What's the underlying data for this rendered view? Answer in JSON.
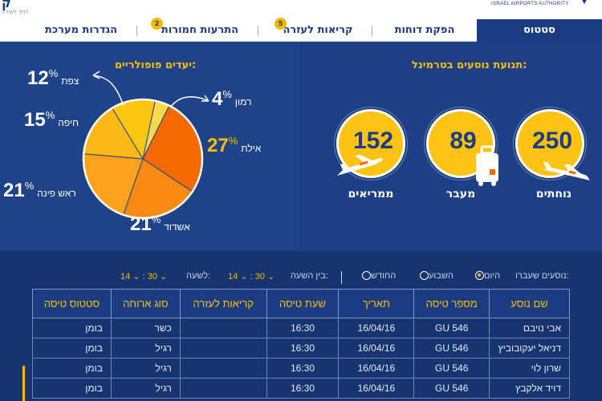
{
  "brand": {
    "left_logo_text": "ק",
    "left_logo_sub": "לחץ לשירה",
    "right_logo_text": "ISRAEL AIRPORTS AUTHORITY"
  },
  "tabs": [
    {
      "label": "סטטוס",
      "active": true
    },
    {
      "label": "הפקת דוחות",
      "active": false
    },
    {
      "label": "קריאות לעזרה",
      "badge": "5",
      "active": false
    },
    {
      "label": "התרעות חמורות",
      "badge": "2",
      "active": false
    },
    {
      "label": "הגדרות מערכת",
      "active": false
    }
  ],
  "traffic": {
    "title": "תנועת נוסעים בטרמינל:",
    "items": [
      {
        "value": "250",
        "label": "נוחתים",
        "icon": "landing-plane-icon"
      },
      {
        "value": "89",
        "label": "מעבר",
        "icon": "luggage-icon"
      },
      {
        "value": "152",
        "label": "ממריאים",
        "icon": "takeoff-plane-icon"
      }
    ]
  },
  "destinations": {
    "title": "יעדים פופולריים:",
    "percent_sign": "%"
  },
  "chart_data": {
    "type": "pie",
    "title": "יעדים פופולריים:",
    "categories": [
      "רמון",
      "אילת",
      "אשדוד",
      "ראש פינה",
      "חיפה",
      "צפת"
    ],
    "values": [
      4,
      27,
      21,
      21,
      15,
      12
    ],
    "colors": [
      "#f9d94a",
      "#f56a00",
      "#fb8a12",
      "#fda21a",
      "#fcb814",
      "#fdc711"
    ]
  },
  "filters": {
    "label": "נוסעים שעברו:",
    "options": [
      {
        "label": "היום",
        "selected": true
      },
      {
        "label": "השבוע",
        "selected": false
      },
      {
        "label": "החודש",
        "selected": false
      }
    ],
    "between_label": "בין השעה:",
    "from_hour": "14",
    "from_min": "30",
    "to_label": "לשעה:",
    "to_hour": "14",
    "to_min": "30",
    "chevron": "⌄",
    "colon": ":"
  },
  "table": {
    "headers": [
      "שם נוסע",
      "מספר טיסה",
      "תאריך",
      "שעת טיסה",
      "קריאות לעזרה",
      "סוג ארוחה",
      "סטטוס טיסה"
    ],
    "rows": [
      [
        "אבי נויבם",
        "GU 546",
        "16/04/16",
        "16:30",
        "",
        "כשר",
        "בומן"
      ],
      [
        "דניאל יעקובוביץ",
        "GU 546",
        "16/04/16",
        "16:30",
        "",
        "רגיל",
        "בומן"
      ],
      [
        "שרון לוי",
        "GU 546",
        "16/04/16",
        "16:30",
        "",
        "רגיל",
        "בומן"
      ],
      [
        "דויד אלקבץ",
        "GU 546",
        "16/04/16",
        "16:30",
        "",
        "רגיל",
        "בומן"
      ]
    ]
  }
}
